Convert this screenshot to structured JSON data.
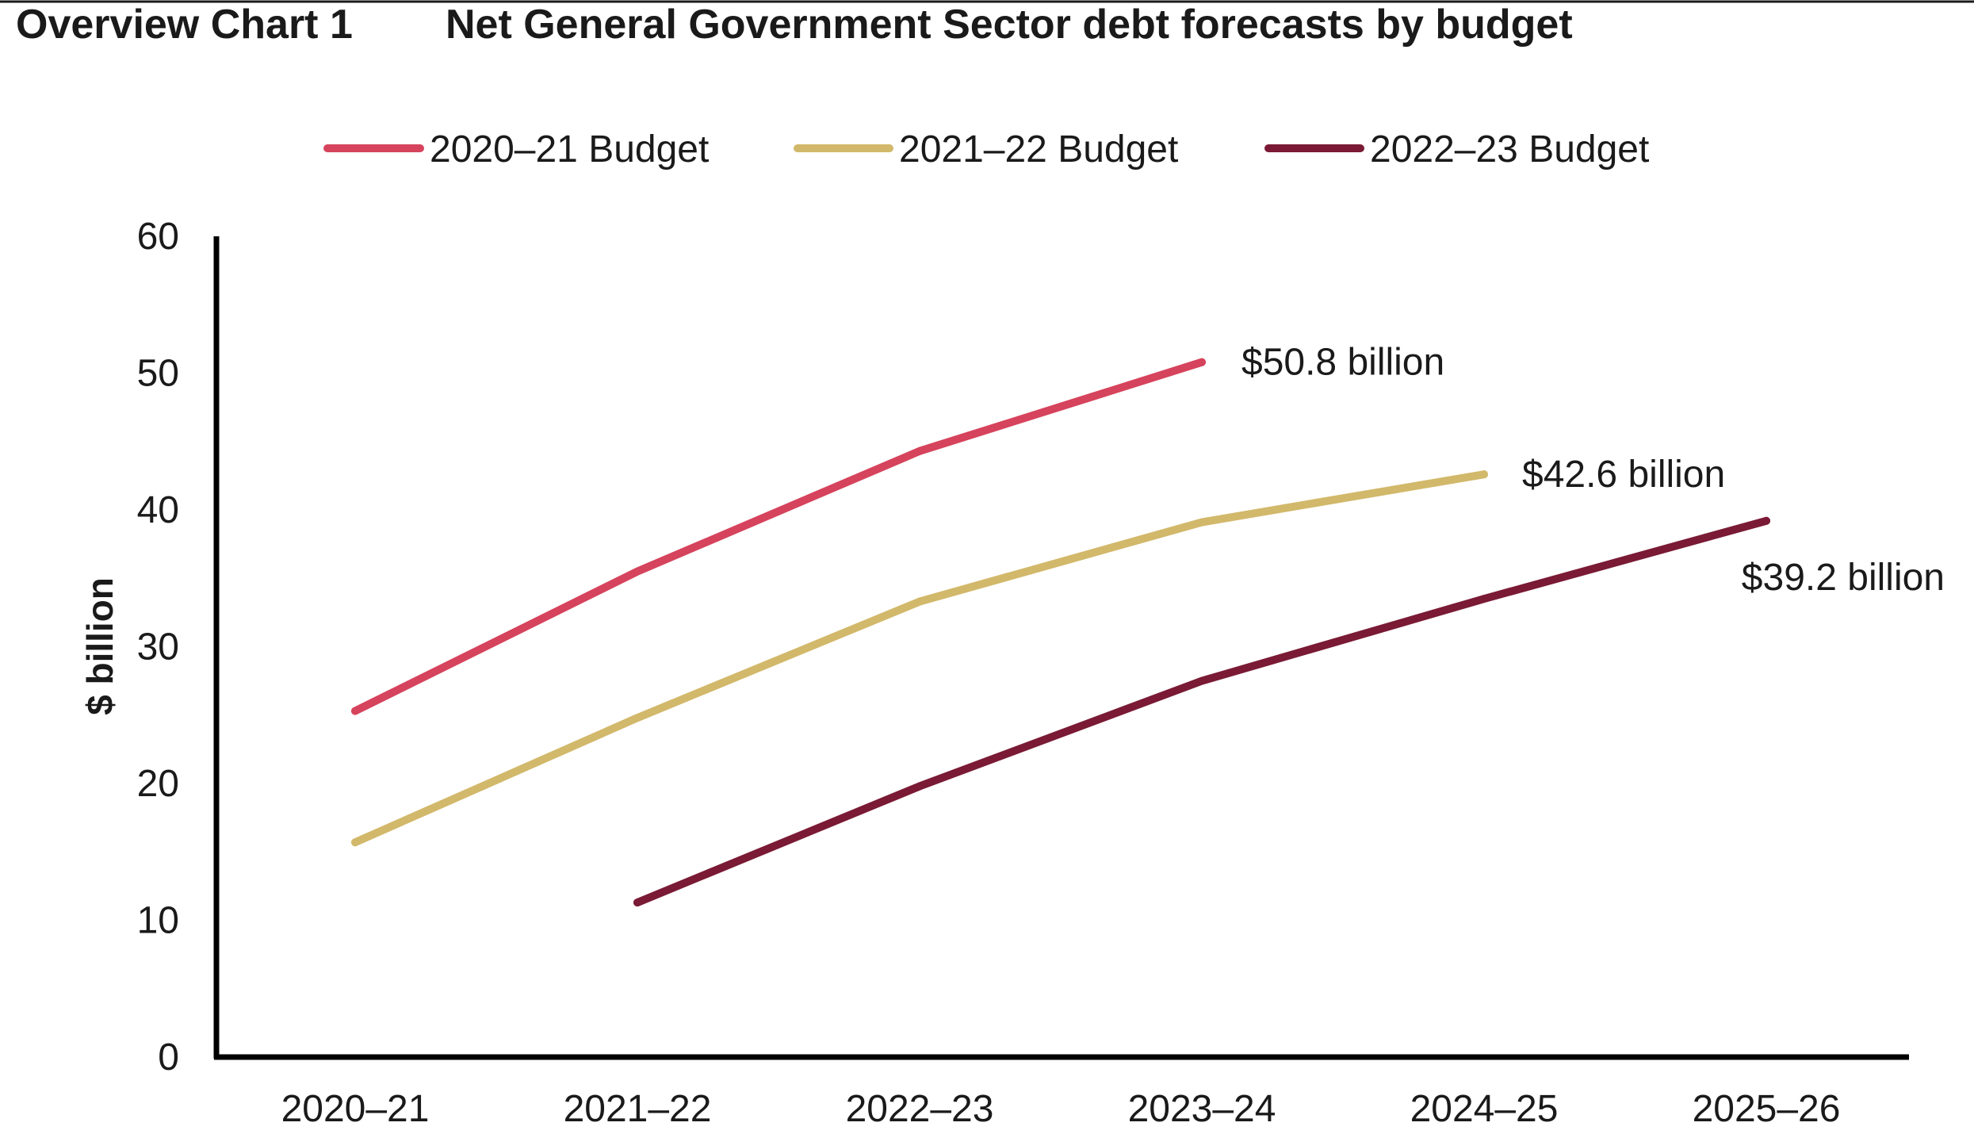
{
  "chart_data": {
    "type": "line",
    "label": "Overview Chart 1",
    "title": "Net General Government Sector debt forecasts by budget",
    "xlabel": "",
    "ylabel": "$ billion",
    "ylim": [
      0,
      60
    ],
    "yticks": [
      "0",
      "10",
      "20",
      "30",
      "40",
      "50",
      "60"
    ],
    "grid": false,
    "legend_position": "top-center",
    "categories": [
      "2020–21",
      "2021–22",
      "2022–23",
      "2023–24",
      "2024–25",
      "2025–26"
    ],
    "series": [
      {
        "name": "2020–21 Budget",
        "color": "#d6435c",
        "values": [
          25.3,
          35.5,
          44.3,
          50.8,
          null,
          null
        ],
        "end_label": "$50.8 billion"
      },
      {
        "name": "2021–22 Budget",
        "color": "#d2b86a",
        "values": [
          15.7,
          24.8,
          33.3,
          39.1,
          42.6,
          null
        ],
        "end_label": "$42.6 billion"
      },
      {
        "name": "2022–23 Budget",
        "color": "#7a1a35",
        "values": [
          null,
          11.3,
          19.8,
          27.5,
          33.5,
          39.2
        ],
        "end_label": "$39.2 billion"
      }
    ]
  }
}
